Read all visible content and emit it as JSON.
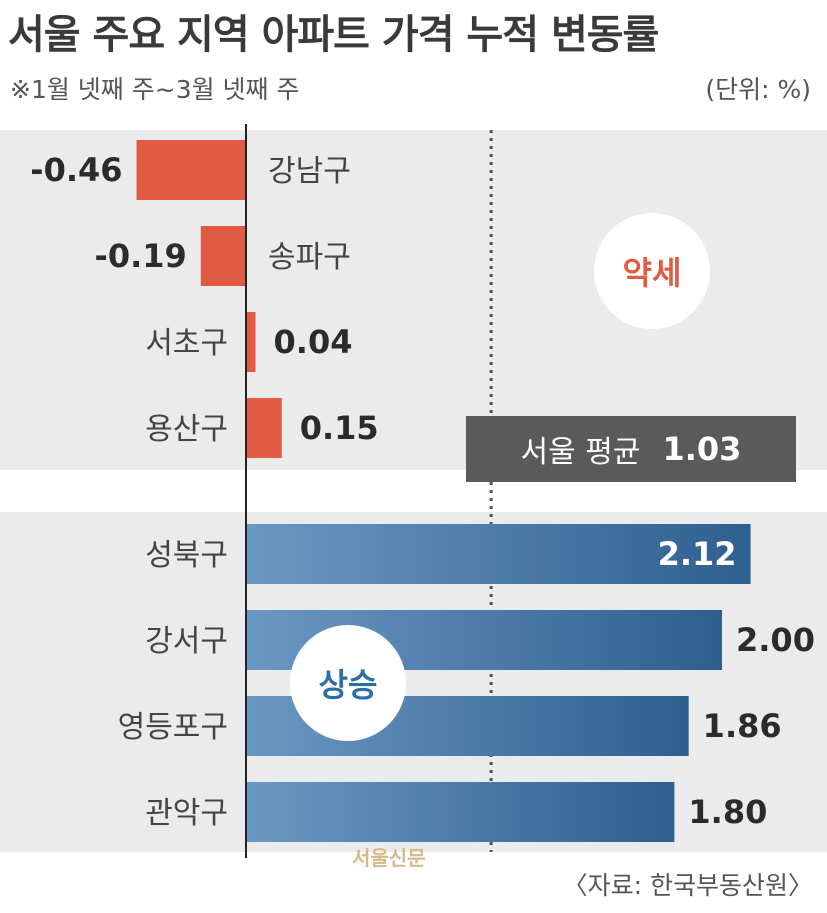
{
  "header": {
    "title": "서울 주요 지역 아파트 가격 누적 변동률",
    "subtitle": "※1월 넷째 주~3월 넷째 주",
    "unit": "(단위: %)"
  },
  "chart_data": {
    "type": "bar",
    "orientation": "horizontal",
    "groups": [
      {
        "name": "약세",
        "categories": [
          "강남구",
          "송파구",
          "서초구",
          "용산구"
        ],
        "values": [
          -0.46,
          -0.19,
          0.04,
          0.15
        ],
        "labels": [
          "-0.46",
          "-0.19",
          "0.04",
          "0.15"
        ]
      },
      {
        "name": "상승",
        "categories": [
          "성북구",
          "강서구",
          "영등포구",
          "관악구"
        ],
        "values": [
          2.12,
          2.0,
          1.86,
          1.8
        ],
        "labels": [
          "2.12",
          "2.00",
          "1.86",
          "1.80"
        ]
      }
    ],
    "reference_line": {
      "label": "서울 평균",
      "value": 1.03,
      "value_label": "1.03"
    },
    "colors": {
      "negative_weak": "#e05a44",
      "rise": "#3d74a3"
    }
  },
  "badges": {
    "weak": "약세",
    "rise": "상승"
  },
  "watermark": "서울신문",
  "source": "〈자료: 한국부동산원〉"
}
